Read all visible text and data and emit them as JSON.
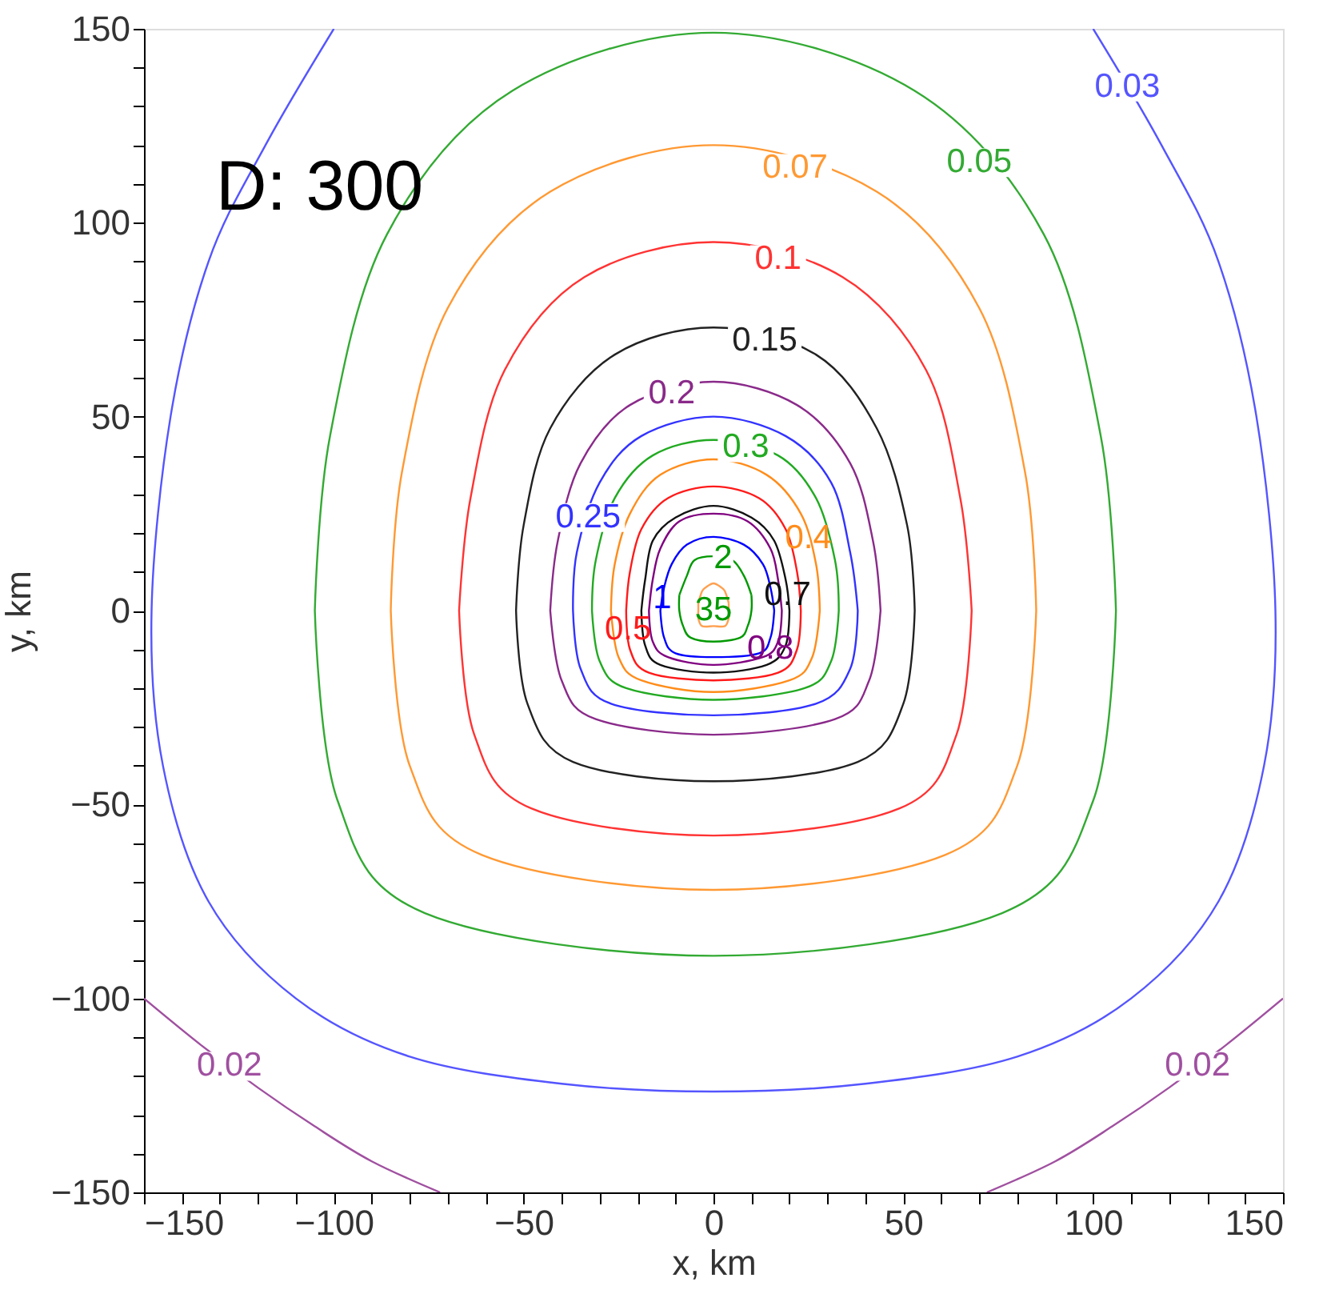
{
  "chart_data": {
    "type": "line",
    "xlabel": "x, km",
    "ylabel": "y, km",
    "annotations": [
      "D: 300",
      "35"
    ],
    "xlim": [
      -150,
      150
    ],
    "ylim": [
      -150,
      150
    ],
    "xticks": [
      {
        "value": -150,
        "label": "−150"
      },
      {
        "value": -140,
        "label": null
      },
      {
        "value": -130,
        "label": null
      },
      {
        "value": -120,
        "label": null
      },
      {
        "value": -110,
        "label": null
      },
      {
        "value": -100,
        "label": "−100"
      },
      {
        "value": -90,
        "label": null
      },
      {
        "value": -80,
        "label": null
      },
      {
        "value": -70,
        "label": null
      },
      {
        "value": -60,
        "label": null
      },
      {
        "value": -50,
        "label": "−50"
      },
      {
        "value": -40,
        "label": null
      },
      {
        "value": -30,
        "label": null
      },
      {
        "value": -20,
        "label": null
      },
      {
        "value": -10,
        "label": null
      },
      0,
      {
        "value": 10,
        "label": null
      },
      {
        "value": 20,
        "label": null
      },
      {
        "value": 30,
        "label": null
      },
      {
        "value": 40,
        "label": null
      },
      50,
      {
        "value": 60,
        "label": null
      },
      {
        "value": 70,
        "label": null
      },
      {
        "value": 80,
        "label": null
      },
      {
        "value": 90,
        "label": null
      },
      100,
      {
        "value": 110,
        "label": null
      },
      {
        "value": 120,
        "label": null
      },
      {
        "value": 130,
        "label": null
      },
      {
        "value": 140,
        "label": null
      },
      150
    ],
    "yticks": [
      {
        "value": -150,
        "label": "−150"
      },
      {
        "value": -140,
        "label": null
      },
      {
        "value": -130,
        "label": null
      },
      {
        "value": -120,
        "label": null
      },
      {
        "value": -110,
        "label": null
      },
      {
        "value": -100,
        "label": "−100"
      },
      {
        "value": -90,
        "label": null
      },
      {
        "value": -80,
        "label": null
      },
      {
        "value": -70,
        "label": null
      },
      {
        "value": -60,
        "label": null
      },
      {
        "value": -50,
        "label": "−50"
      },
      {
        "value": -40,
        "label": null
      },
      {
        "value": -30,
        "label": null
      },
      {
        "value": -20,
        "label": null
      },
      {
        "value": -10,
        "label": null
      },
      0,
      {
        "value": 10,
        "label": null
      },
      {
        "value": 20,
        "label": null
      },
      {
        "value": 30,
        "label": null
      },
      {
        "value": 40,
        "label": null
      },
      50,
      {
        "value": 60,
        "label": null
      },
      {
        "value": 70,
        "label": null
      },
      {
        "value": 80,
        "label": null
      },
      {
        "value": 90,
        "label": null
      },
      100,
      {
        "value": 110,
        "label": null
      },
      {
        "value": 120,
        "label": null
      },
      {
        "value": 130,
        "label": null
      },
      {
        "value": 140,
        "label": null
      },
      150
    ],
    "grid": false,
    "marker": "none",
    "line_style": "solid",
    "series": [
      {
        "name": "0.02",
        "color": "#a050a0",
        "x": [
          -150,
          -135,
          -120,
          -105,
          -90,
          -72
        ],
        "values": [
          -100,
          -112,
          -123,
          -133,
          -142,
          -150
        ]
      },
      {
        "name": "0.02",
        "color": "#a050a0",
        "x": [
          72,
          90,
          105,
          120,
          135,
          150
        ],
        "values": [
          -150,
          -142,
          -133,
          -123,
          -112,
          -100
        ]
      },
      {
        "name": "0.03",
        "color": "#5555ff",
        "x": [
          -100,
          -118,
          -133,
          -143,
          -148,
          -145,
          -133,
          -110,
          -80,
          -40,
          0,
          40,
          80,
          110,
          133,
          145,
          148,
          143,
          133,
          118,
          100
        ],
        "values": [
          150,
          120,
          90,
          50,
          0,
          -40,
          -75,
          -100,
          -115,
          -122,
          -124,
          -122,
          -115,
          -100,
          -75,
          -40,
          0,
          50,
          90,
          120,
          150
        ]
      },
      {
        "name": "0.05",
        "color": "#33aa33",
        "x": [
          0,
          53,
          87,
          102,
          106,
          100,
          76,
          0,
          -76,
          -99,
          -105,
          -101,
          -86,
          -53
        ],
        "values": [
          149,
          134,
          97,
          45,
          0,
          -49,
          -78,
          -89,
          -78,
          -49,
          0,
          45,
          97,
          134
        ]
      },
      {
        "name": "0.07",
        "color": "#ff9933",
        "x": [
          0,
          43,
          70,
          82,
          85,
          80,
          61,
          0,
          -61,
          -80,
          -85,
          -82,
          -70,
          -43
        ],
        "values": [
          120,
          108,
          78,
          36,
          0,
          -40,
          -63,
          -72,
          -63,
          -40,
          0,
          36,
          78,
          108
        ]
      },
      {
        "name": "0.1",
        "color": "#ff3333",
        "x": [
          0,
          34,
          56,
          65,
          68,
          64,
          49,
          0,
          -48,
          -63,
          -67,
          -64,
          -55,
          -34
        ],
        "values": [
          95,
          86,
          62,
          29,
          0,
          -32,
          -51,
          -58,
          -51,
          -32,
          0,
          29,
          62,
          86
        ]
      },
      {
        "name": "0.15",
        "color": "#222222",
        "x": [
          0,
          27,
          43,
          51,
          53,
          50,
          38,
          0,
          -37,
          -49,
          -52,
          -50,
          -43,
          -26
        ],
        "values": [
          73,
          66,
          47,
          22,
          0,
          -24,
          -39,
          -44,
          -39,
          -24,
          0,
          22,
          47,
          66
        ]
      },
      {
        "name": "0.2",
        "color": "#8a2a8a",
        "x": [
          0,
          22,
          36,
          42,
          44,
          41,
          32,
          0,
          -31,
          -40,
          -43,
          -41,
          -35,
          -22
        ],
        "values": [
          59,
          53,
          38,
          18,
          0,
          -18,
          -28,
          -32,
          -28,
          -18,
          0,
          18,
          38,
          53
        ]
      },
      {
        "name": "0.25",
        "color": "#3333ff",
        "x": [
          0,
          19,
          31,
          36,
          38,
          36,
          27,
          0,
          -27,
          -35,
          -37,
          -36,
          -30,
          -19
        ],
        "values": [
          50,
          45,
          33,
          15,
          0,
          -15,
          -24,
          -27,
          -24,
          -15,
          0,
          15,
          33,
          45
        ]
      },
      {
        "name": "0.3",
        "color": "#22aa22",
        "x": [
          0,
          17,
          27,
          32,
          33,
          31,
          24,
          0,
          -23,
          -30,
          -32,
          -31,
          -26,
          -16
        ],
        "values": [
          44,
          40,
          29,
          13,
          0,
          -13,
          -20,
          -23,
          -20,
          -13,
          0,
          13,
          29,
          40
        ]
      },
      {
        "name": "0.4",
        "color": "#ff8c1a",
        "x": [
          0,
          14,
          23,
          27,
          28,
          26,
          20,
          0,
          -19,
          -25,
          -27,
          -26,
          -22,
          -14
        ],
        "values": [
          39,
          35,
          25,
          12,
          0,
          -12,
          -18,
          -21,
          -18,
          -12,
          0,
          12,
          25,
          35
        ]
      },
      {
        "name": "0.5",
        "color": "#ff1a1a",
        "x": [
          0,
          12,
          19,
          22,
          23,
          22,
          17,
          0,
          -17,
          -22,
          -23,
          -22,
          -19,
          -12
        ],
        "values": [
          32,
          29,
          21,
          10,
          0,
          -10,
          -16,
          -18,
          -16,
          -10,
          0,
          10,
          21,
          29
        ]
      },
      {
        "name": "0.7",
        "color": "#111111",
        "x": [
          0,
          10,
          16,
          19,
          20,
          19,
          14,
          0,
          -14,
          -18,
          -19,
          -18,
          -16,
          -10
        ],
        "values": [
          27,
          24,
          18,
          8,
          0,
          -9,
          -14,
          -16,
          -14,
          -9,
          0,
          8,
          18,
          24
        ]
      },
      {
        "name": "0.8",
        "color": "#800080",
        "x": [
          0,
          9,
          15,
          17,
          18,
          17,
          13,
          0,
          -12,
          -16,
          -17,
          -16,
          -14,
          -9
        ],
        "values": [
          25,
          23,
          16,
          8,
          0,
          -8,
          -12,
          -14,
          -12,
          -8,
          0,
          8,
          16,
          23
        ]
      },
      {
        "name": "1",
        "color": "#0000ff",
        "x": [
          0,
          8,
          13,
          15,
          16,
          15,
          12,
          0,
          -10,
          -13,
          -14,
          -13,
          -11,
          -7
        ],
        "values": [
          19,
          17,
          12,
          6,
          0,
          -7,
          -11,
          -12,
          -11,
          -7,
          0,
          6,
          12,
          17
        ]
      },
      {
        "name": "2",
        "color": "#009900",
        "x": [
          0,
          5,
          8,
          10,
          10,
          9,
          7,
          0,
          -6,
          -8,
          -9,
          -9,
          -7,
          -5
        ],
        "values": [
          14,
          13,
          9,
          4,
          0,
          -4,
          -7,
          -8,
          -7,
          -4,
          0,
          4,
          9,
          13
        ]
      },
      {
        "color": "#ffa050",
        "x": [
          0,
          2,
          3,
          4,
          4,
          4,
          3,
          0,
          -3,
          -4,
          -4,
          -4,
          -3,
          -2
        ],
        "values": [
          7,
          6,
          5,
          2,
          0,
          -2,
          -4,
          -4,
          -4,
          -2,
          0,
          2,
          5,
          6
        ]
      }
    ]
  }
}
